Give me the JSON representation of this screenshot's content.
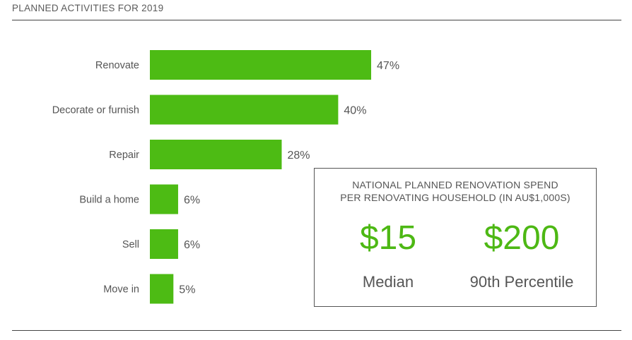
{
  "header": {
    "title": "PLANNED ACTIVITIES FOR 2019"
  },
  "colors": {
    "bar": "#4dbb14",
    "accent": "#4db814",
    "text": "#555555"
  },
  "chart_data": {
    "type": "bar",
    "orientation": "horizontal",
    "title": "PLANNED ACTIVITIES FOR 2019",
    "categories": [
      "Renovate",
      "Decorate or furnish",
      "Repair",
      "Build a home",
      "Sell",
      "Move in"
    ],
    "values": [
      47,
      40,
      28,
      6,
      6,
      5
    ],
    "value_labels": [
      "47%",
      "40%",
      "28%",
      "6%",
      "6%",
      "5%"
    ],
    "xlim": [
      0,
      100
    ],
    "grid": false
  },
  "callout": {
    "heading_line1": "NATIONAL PLANNED RENOVATION SPEND",
    "heading_line2": "PER RENOVATING HOUSEHOLD (IN AU$1,000S)",
    "stats": [
      {
        "value": "$15",
        "label": "Median"
      },
      {
        "value": "$200",
        "label": "90th Percentile"
      }
    ]
  }
}
